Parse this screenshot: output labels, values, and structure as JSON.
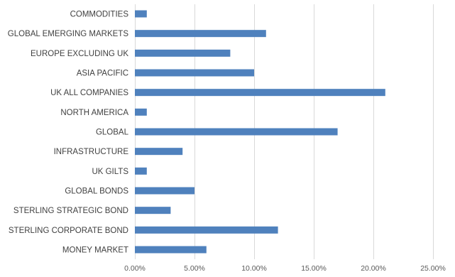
{
  "chart_data": {
    "type": "bar",
    "orientation": "horizontal",
    "title": "",
    "xlabel": "",
    "ylabel": "",
    "categories": [
      "COMMODITIES",
      "GLOBAL EMERGING MARKETS",
      "EUROPE EXCLUDING UK",
      "ASIA PACIFIC",
      "UK ALL COMPANIES",
      "NORTH AMERICA",
      "GLOBAL",
      "INFRASTRUCTURE",
      "UK GILTS",
      "GLOBAL BONDS",
      "STERLING STRATEGIC BOND",
      "STERLING CORPORATE BOND",
      "MONEY MARKET"
    ],
    "values": [
      1,
      11,
      8,
      10,
      21,
      1,
      17,
      4,
      1,
      5,
      3,
      12,
      6
    ],
    "unit": "%",
    "xlim": [
      0,
      25
    ],
    "xticks": [
      0,
      5,
      10,
      15,
      20,
      25
    ],
    "xtick_labels": [
      "0.00%",
      "5.00%",
      "10.00%",
      "15.00%",
      "20.00%",
      "25.00%"
    ],
    "grid": "vertical",
    "legend": "none",
    "bar_color": "#4f81bd",
    "grid_color": "#d9d9d9"
  }
}
